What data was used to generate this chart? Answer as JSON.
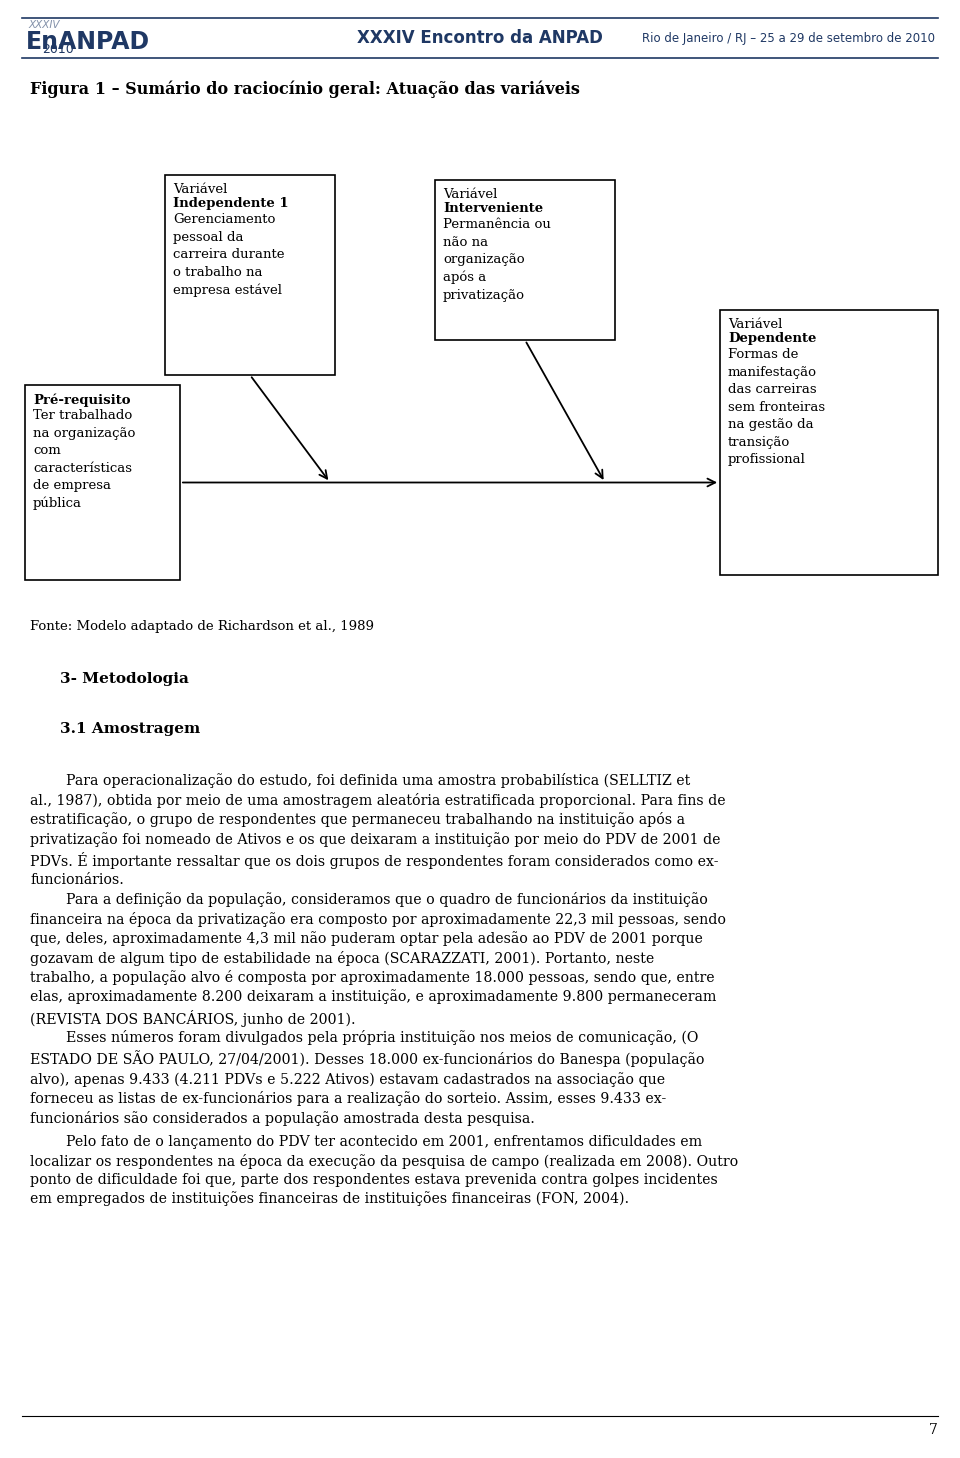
{
  "header_logo_xxxiv": "XXXIV",
  "header_logo_main": "EnANPAD",
  "header_logo_year": "2010",
  "header_center": "XXXIV Encontro da ANPAD",
  "header_right": "Rio de Janeiro / RJ – 25 a 29 de setembro de 2010",
  "figure_title": "Figura 1 – Sumário do raciocínio geral: Atuação das variáveis",
  "fonte": "Fonte: Modelo adaptado de Richardson et al., 1989",
  "section_title": "3- Metodologia",
  "subsection_title": "3.1 Amostragem",
  "page_number": "7",
  "bg_color": "#ffffff",
  "text_color": "#000000",
  "header_color": "#1f3864"
}
